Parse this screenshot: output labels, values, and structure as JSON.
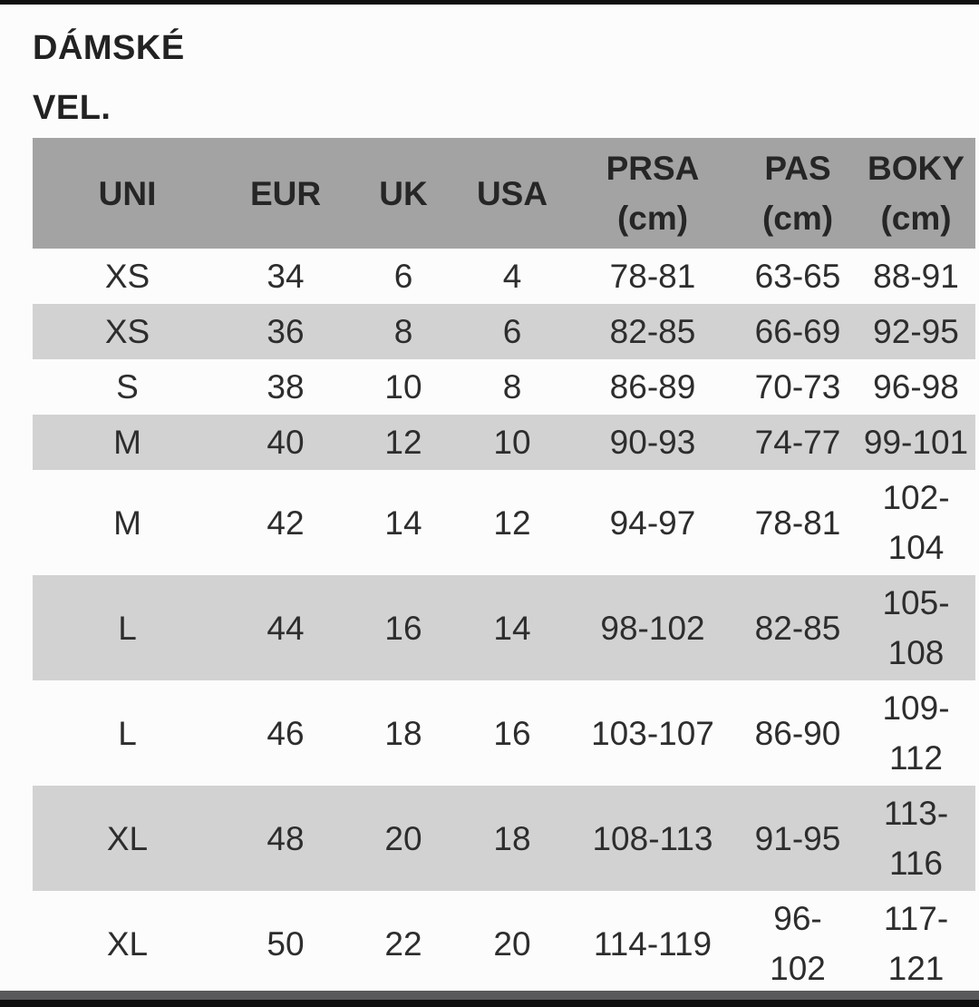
{
  "title": {
    "line1": "DÁMSKÉ",
    "line2": "VEL."
  },
  "table": {
    "columns": [
      {
        "label": "UNI",
        "sub": ""
      },
      {
        "label": "EUR",
        "sub": ""
      },
      {
        "label": "UK",
        "sub": ""
      },
      {
        "label": "USA",
        "sub": ""
      },
      {
        "label": "PRSA",
        "sub": "(cm)"
      },
      {
        "label": "PAS",
        "sub": "(cm)"
      },
      {
        "label": "BOKY",
        "sub": "(cm)"
      }
    ],
    "rows": [
      [
        "XS",
        "34",
        "6",
        "4",
        "78-81",
        "63-65",
        "88-91"
      ],
      [
        "XS",
        "36",
        "8",
        "6",
        "82-85",
        "66-69",
        "92-95"
      ],
      [
        "S",
        "38",
        "10",
        "8",
        "86-89",
        "70-73",
        "96-98"
      ],
      [
        "M",
        "40",
        "12",
        "10",
        "90-93",
        "74-77",
        "99-101"
      ],
      [
        "M",
        "42",
        "14",
        "12",
        "94-97",
        "78-81",
        "102-104"
      ],
      [
        "L",
        "44",
        "16",
        "14",
        "98-102",
        "82-85",
        "105-108"
      ],
      [
        "L",
        "46",
        "18",
        "16",
        "103-107",
        "86-90",
        "109-112"
      ],
      [
        "XL",
        "48",
        "20",
        "18",
        "108-113",
        "91-95",
        "113-116"
      ],
      [
        "XL",
        "50",
        "22",
        "20",
        "114-119",
        "96-102",
        "117-121"
      ]
    ]
  },
  "colors": {
    "page_background": "#fcfcfc",
    "header_background": "#a3a3a3",
    "zebra_row_background": "#d2d2d2",
    "text": "#2d2d2d",
    "frame_black": "#101010",
    "frame_gray": "#59595b"
  }
}
